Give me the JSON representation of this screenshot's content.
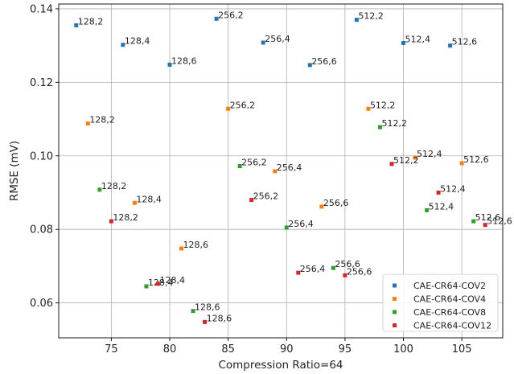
{
  "chart_data": {
    "type": "scatter",
    "title": "",
    "xlabel": "Compression Ratio=64",
    "ylabel": "RMSE (mV)",
    "xlim": [
      70.5,
      108.5
    ],
    "ylim": [
      0.0505,
      0.1413
    ],
    "xticks": [
      75,
      80,
      85,
      90,
      95,
      100,
      105
    ],
    "yticks": [
      0.06,
      0.08,
      0.1,
      0.12,
      0.14
    ],
    "grid": true,
    "legend_position": "lower-right",
    "series": [
      {
        "name": "CAE-CR64-COV2",
        "color": "#1f77b4",
        "points": [
          {
            "x": 72,
            "y": 0.1355,
            "label": "128,2"
          },
          {
            "x": 76,
            "y": 0.1302,
            "label": "128,4"
          },
          {
            "x": 80,
            "y": 0.1248,
            "label": "128,6"
          },
          {
            "x": 84,
            "y": 0.1373,
            "label": "256,2"
          },
          {
            "x": 88,
            "y": 0.1308,
            "label": "256,4"
          },
          {
            "x": 92,
            "y": 0.1247,
            "label": "256,6"
          },
          {
            "x": 96,
            "y": 0.137,
            "label": "512,2"
          },
          {
            "x": 100,
            "y": 0.1307,
            "label": "512,4"
          },
          {
            "x": 104,
            "y": 0.13,
            "label": "512,6"
          }
        ]
      },
      {
        "name": "CAE-CR64-COV4",
        "color": "#ff7f0e",
        "points": [
          {
            "x": 73,
            "y": 0.1088,
            "label": "128,2"
          },
          {
            "x": 77,
            "y": 0.0872,
            "label": "128,4"
          },
          {
            "x": 81,
            "y": 0.0748,
            "label": "128,6"
          },
          {
            "x": 85,
            "y": 0.1128,
            "label": "256,2"
          },
          {
            "x": 89,
            "y": 0.0958,
            "label": "256,4"
          },
          {
            "x": 93,
            "y": 0.0862,
            "label": "256,6"
          },
          {
            "x": 97,
            "y": 0.1128,
            "label": "512,2"
          },
          {
            "x": 101,
            "y": 0.0995,
            "label": "512,4"
          },
          {
            "x": 105,
            "y": 0.098,
            "label": "512,6"
          }
        ]
      },
      {
        "name": "CAE-CR64-COV8",
        "color": "#2ca02c",
        "points": [
          {
            "x": 74,
            "y": 0.0908,
            "label": "128,2"
          },
          {
            "x": 78,
            "y": 0.0645,
            "label": "128,4"
          },
          {
            "x": 82,
            "y": 0.0578,
            "label": "128,6"
          },
          {
            "x": 86,
            "y": 0.0972,
            "label": "256,2"
          },
          {
            "x": 90,
            "y": 0.0805,
            "label": "256,4"
          },
          {
            "x": 94,
            "y": 0.0695,
            "label": "256,6"
          },
          {
            "x": 98,
            "y": 0.1078,
            "label": "512,2"
          },
          {
            "x": 102,
            "y": 0.0852,
            "label": "512,4"
          },
          {
            "x": 106,
            "y": 0.0822,
            "label": "512,6"
          }
        ]
      },
      {
        "name": "CAE-CR64-COV12",
        "color": "#d62728",
        "points": [
          {
            "x": 75,
            "y": 0.0822,
            "label": "128,2"
          },
          {
            "x": 79,
            "y": 0.0652,
            "label": "128,4"
          },
          {
            "x": 83,
            "y": 0.0548,
            "label": "128,6"
          },
          {
            "x": 87,
            "y": 0.088,
            "label": "256,2"
          },
          {
            "x": 91,
            "y": 0.0682,
            "label": "256,4"
          },
          {
            "x": 95,
            "y": 0.0675,
            "label": "256,6"
          },
          {
            "x": 99,
            "y": 0.0978,
            "label": "512,2"
          },
          {
            "x": 103,
            "y": 0.09,
            "label": "512,4"
          },
          {
            "x": 107,
            "y": 0.0812,
            "label": "512,6"
          }
        ]
      }
    ]
  }
}
